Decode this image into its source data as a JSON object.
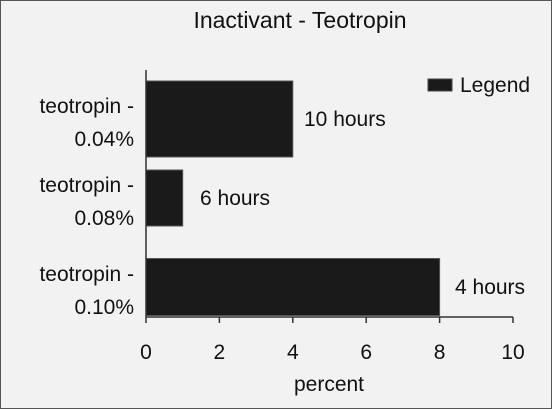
{
  "chart_data": {
    "type": "bar",
    "orientation": "horizontal",
    "title": "Inactivant - Teotropin",
    "xlabel": "percent",
    "ylabel": "",
    "xlim": [
      0,
      10
    ],
    "xticks": [
      0,
      2,
      4,
      6,
      8,
      10
    ],
    "grid": false,
    "legend": {
      "label": "Legend",
      "position": "top-right"
    },
    "categories": [
      [
        "teotropin -",
        "0.04%"
      ],
      [
        "teotropin -",
        "0.08%"
      ],
      [
        "teotropin -",
        "0.10%"
      ]
    ],
    "values": [
      4,
      1,
      8
    ],
    "data_labels": [
      "10 hours",
      "6 hours",
      "4 hours"
    ],
    "bar_color": "#1a1a1a"
  }
}
